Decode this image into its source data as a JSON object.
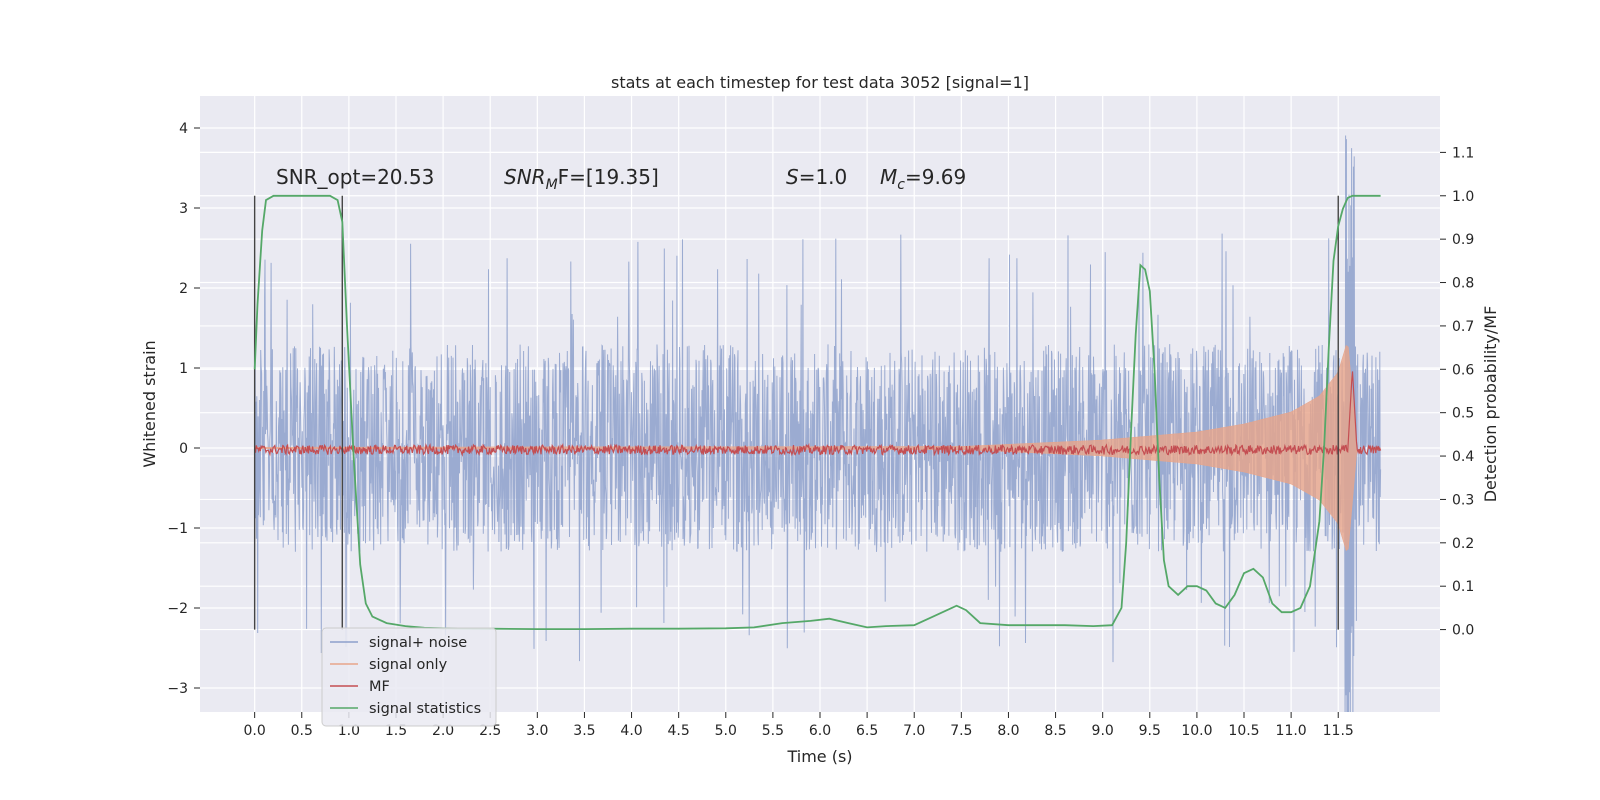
{
  "chart_data": {
    "type": "line",
    "title": "stats at each timestep for test data 3052 [signal=1]",
    "xlabel": "Time (s)",
    "ylabel_left": "Whitened strain",
    "ylabel_right": "Detection probability/MF",
    "xlim": [
      -0.58,
      12.58
    ],
    "ylim_left": [
      -3.3,
      4.4
    ],
    "ylim_right": [
      -0.19,
      1.23
    ],
    "grid": true,
    "legend_position": "lower-left",
    "x_ticks": [
      "0.0",
      "0.5",
      "1.0",
      "1.5",
      "2.0",
      "2.5",
      "3.0",
      "3.5",
      "4.0",
      "4.5",
      "5.0",
      "5.5",
      "6.0",
      "6.5",
      "7.0",
      "7.5",
      "8.0",
      "8.5",
      "9.0",
      "9.5",
      "10.0",
      "10.5",
      "11.0",
      "11.5"
    ],
    "y_ticks_left": [
      "−3",
      "−2",
      "−1",
      "0",
      "1",
      "2",
      "3",
      "4"
    ],
    "y_ticks_right": [
      "0.0",
      "0.1",
      "0.2",
      "0.3",
      "0.4",
      "0.5",
      "0.6",
      "0.7",
      "0.8",
      "0.9",
      "1.0",
      "1.1"
    ],
    "annotations": {
      "snr_opt": "SNR_opt=20.53",
      "snr_mf_label": "SNR",
      "snr_mf_sub": "M",
      "snr_mf_value": "F=[19.35]",
      "s_label": "S",
      "s_value": "=1.0",
      "mc_label": "M",
      "mc_sub": "c",
      "mc_value": "=9.69"
    },
    "vertical_markers_x": [
      0.0,
      0.93,
      11.5
    ],
    "series": [
      {
        "name": "signal+ noise",
        "color": "#8da0cb",
        "axis": "left",
        "description_values": {
          "x_range": [
            0.0,
            11.95
          ],
          "typical_abs_amplitude": 1.2,
          "max": 4.08,
          "min": -2.95
        }
      },
      {
        "name": "signal only",
        "color": "#e8a58a",
        "axis": "left",
        "envelope": {
          "x": [
            0.0,
            7.5,
            9.0,
            10.0,
            10.5,
            11.0,
            11.3,
            11.5,
            11.6,
            11.7
          ],
          "amplitude": [
            0.01,
            0.02,
            0.1,
            0.2,
            0.3,
            0.45,
            0.65,
            0.95,
            1.35,
            0.0
          ]
        }
      },
      {
        "name": "MF",
        "color": "#c44e52",
        "axis": "right",
        "baseline": 0.41,
        "peak": {
          "x": 11.65,
          "y": 0.6
        }
      },
      {
        "name": "signal statistics",
        "color": "#55a868",
        "axis": "right",
        "x": [
          0.0,
          0.03,
          0.08,
          0.12,
          0.2,
          0.35,
          0.5,
          0.7,
          0.8,
          0.88,
          0.93,
          0.98,
          1.05,
          1.12,
          1.18,
          1.25,
          1.4,
          1.6,
          1.8,
          2.0,
          2.5,
          3.0,
          3.5,
          4.0,
          4.5,
          5.0,
          5.3,
          5.6,
          5.9,
          6.1,
          6.3,
          6.5,
          6.7,
          7.0,
          7.2,
          7.35,
          7.45,
          7.55,
          7.7,
          8.0,
          8.3,
          8.6,
          8.9,
          9.1,
          9.2,
          9.25,
          9.3,
          9.35,
          9.4,
          9.45,
          9.5,
          9.55,
          9.6,
          9.65,
          9.7,
          9.8,
          9.9,
          10.0,
          10.1,
          10.2,
          10.3,
          10.4,
          10.5,
          10.6,
          10.7,
          10.8,
          10.9,
          11.0,
          11.1,
          11.2,
          11.3,
          11.35,
          11.4,
          11.45,
          11.5,
          11.55,
          11.6,
          11.65,
          11.7,
          11.8,
          11.95
        ],
        "values": [
          0.6,
          0.75,
          0.92,
          0.99,
          1.0,
          1.0,
          1.0,
          1.0,
          1.0,
          0.99,
          0.94,
          0.7,
          0.4,
          0.15,
          0.06,
          0.03,
          0.015,
          0.008,
          0.004,
          0.003,
          0.002,
          0.001,
          0.001,
          0.002,
          0.002,
          0.003,
          0.005,
          0.015,
          0.02,
          0.025,
          0.015,
          0.005,
          0.008,
          0.01,
          0.03,
          0.045,
          0.055,
          0.045,
          0.015,
          0.01,
          0.01,
          0.01,
          0.008,
          0.01,
          0.05,
          0.2,
          0.45,
          0.68,
          0.84,
          0.83,
          0.78,
          0.6,
          0.35,
          0.16,
          0.1,
          0.08,
          0.1,
          0.1,
          0.09,
          0.06,
          0.05,
          0.08,
          0.13,
          0.14,
          0.12,
          0.06,
          0.04,
          0.04,
          0.05,
          0.1,
          0.25,
          0.42,
          0.65,
          0.85,
          0.93,
          0.97,
          0.995,
          1.0,
          1.0,
          1.0,
          1.0
        ]
      }
    ]
  }
}
